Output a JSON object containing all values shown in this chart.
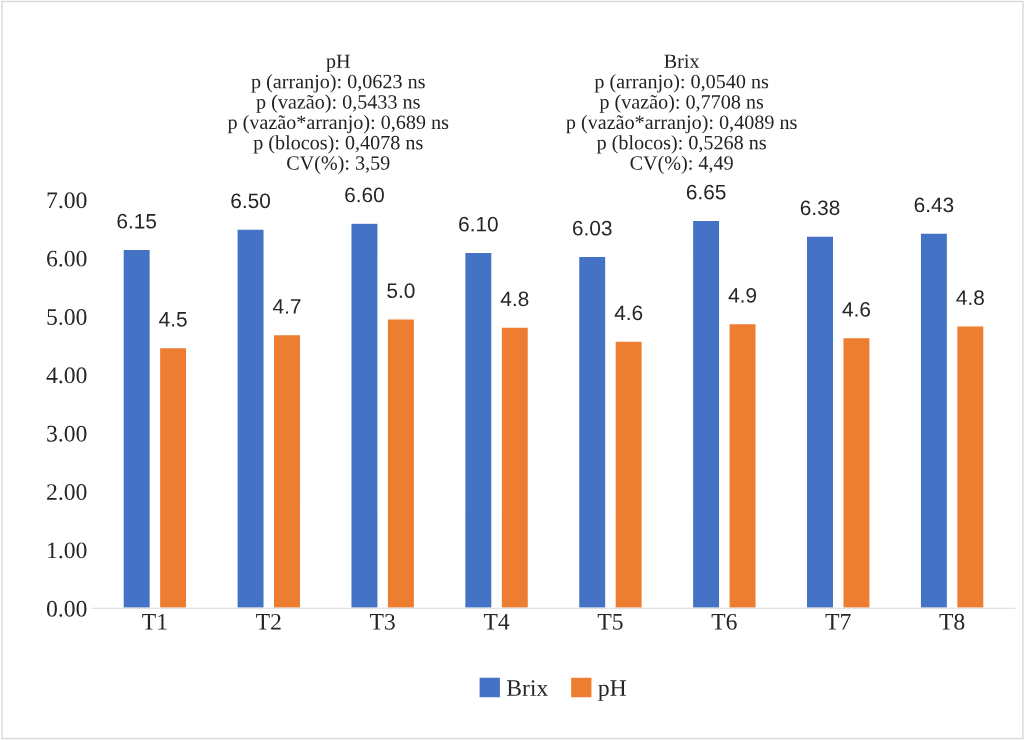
{
  "chart_data": {
    "type": "bar",
    "categories": [
      "T1",
      "T2",
      "T3",
      "T4",
      "T5",
      "T6",
      "T7",
      "T8"
    ],
    "series": [
      {
        "name": "Brix",
        "color": "#4472c4",
        "values": [
          6.15,
          6.5,
          6.6,
          6.1,
          6.03,
          6.65,
          6.38,
          6.43
        ],
        "value_labels": [
          "6.15",
          "6.50",
          "6.60",
          "6.10",
          "6.03",
          "6.65",
          "6.38",
          "6.43"
        ]
      },
      {
        "name": "pH",
        "color": "#ed7d31",
        "values": [
          4.47,
          4.69,
          4.96,
          4.82,
          4.58,
          4.88,
          4.64,
          4.84
        ],
        "value_labels": [
          "4.5",
          "4.7",
          "5.0",
          "4.8",
          "4.6",
          "4.9",
          "4.6",
          "4.8"
        ]
      }
    ],
    "ylim": [
      0,
      7
    ],
    "yticks": [
      {
        "value": 0,
        "label": "0.00"
      },
      {
        "value": 1,
        "label": "1.00"
      },
      {
        "value": 2,
        "label": "2.00"
      },
      {
        "value": 3,
        "label": "3.00"
      },
      {
        "value": 4,
        "label": "4.00"
      },
      {
        "value": 5,
        "label": "5.00"
      },
      {
        "value": 6,
        "label": "6.00"
      },
      {
        "value": 7,
        "label": "7.00"
      }
    ],
    "annotations": [
      "pH\np (arranjo): 0,0623 ns\np (vazão): 0,5433 ns\np (vazão*arranjo): 0,689 ns\np (blocos): 0,4078 ns\nCV(%): 3,59",
      "Brix\np (arranjo): 0,0540 ns\np (vazão): 0,7708 ns\np (vazão*arranjo): 0,4089 ns\np (blocos): 0,5268 ns\nCV(%): 4,49"
    ],
    "grid": false,
    "legend": "bottom"
  }
}
